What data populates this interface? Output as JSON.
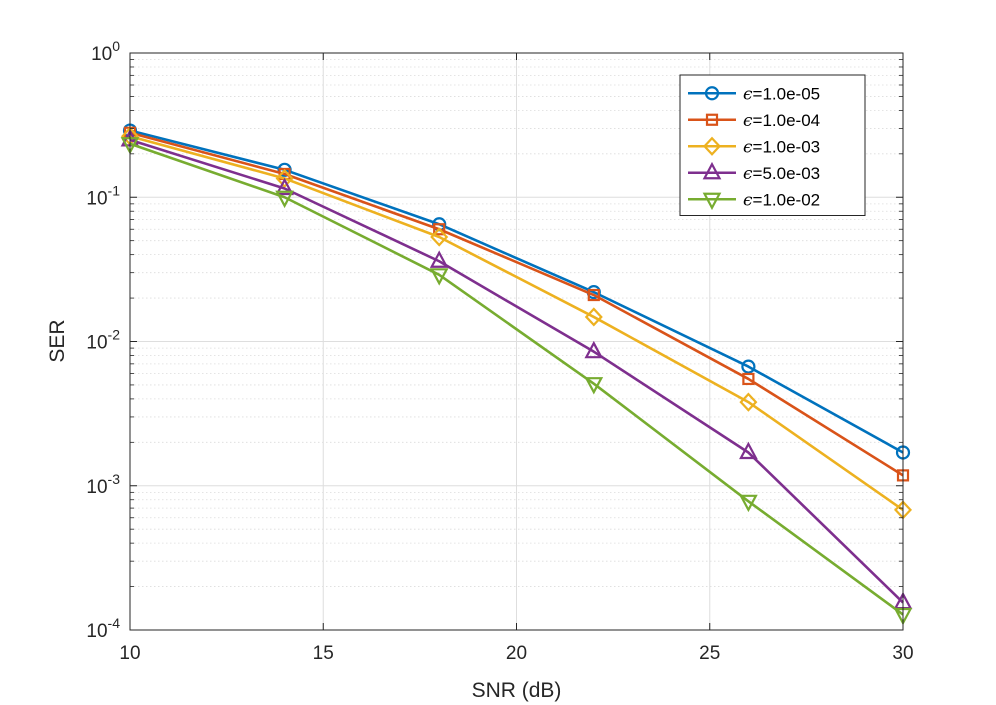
{
  "chart_data": {
    "type": "line",
    "title": "",
    "xlabel": "SNR (dB)",
    "ylabel": "SER",
    "xlim": [
      10,
      30
    ],
    "ylim": [
      0.0001,
      1
    ],
    "yscale": "log",
    "grid": true,
    "minor_grid": true,
    "legend_position": "top-right",
    "x_ticks": [
      {
        "value": 10,
        "label": "10"
      },
      {
        "value": 15,
        "label": "15"
      },
      {
        "value": 20,
        "label": "20"
      },
      {
        "value": 25,
        "label": "25"
      },
      {
        "value": 30,
        "label": "30"
      }
    ],
    "y_ticks": [
      {
        "exp": 0,
        "base": "10",
        "exponent": "0"
      },
      {
        "exp": -1,
        "base": "10",
        "exponent": "-1"
      },
      {
        "exp": -2,
        "base": "10",
        "exponent": "-2"
      },
      {
        "exp": -3,
        "base": "10",
        "exponent": "-3"
      },
      {
        "exp": -4,
        "base": "10",
        "exponent": "-4"
      }
    ],
    "x": [
      10,
      14,
      18,
      22,
      26,
      30
    ],
    "series": [
      {
        "name": "ϵ=1.0e-05",
        "symbol": "ϵ",
        "value_text": "=1.0e-05",
        "color": "#0072BD",
        "marker": "circle",
        "values": [
          0.29,
          0.155,
          0.065,
          0.022,
          0.0067,
          0.0017
        ]
      },
      {
        "name": "ϵ=1.0e-04",
        "symbol": "ϵ",
        "value_text": "=1.0e-04",
        "color": "#D95319",
        "marker": "square",
        "values": [
          0.28,
          0.145,
          0.06,
          0.021,
          0.0055,
          0.00118
        ]
      },
      {
        "name": "ϵ=1.0e-03",
        "symbol": "ϵ",
        "value_text": "=1.0e-03",
        "color": "#EDB120",
        "marker": "diamond",
        "values": [
          0.265,
          0.135,
          0.053,
          0.0148,
          0.0038,
          0.00068
        ]
      },
      {
        "name": "ϵ=5.0e-03",
        "symbol": "ϵ",
        "value_text": "=5.0e-03",
        "color": "#7E2F8E",
        "marker": "triangle-up",
        "values": [
          0.25,
          0.115,
          0.036,
          0.0085,
          0.0017,
          0.000155
        ]
      },
      {
        "name": "ϵ=1.0e-02",
        "symbol": "ϵ",
        "value_text": "=1.0e-02",
        "color": "#77AC30",
        "marker": "triangle-down",
        "values": [
          0.235,
          0.1,
          0.029,
          0.0051,
          0.00078,
          0.000128
        ]
      }
    ]
  }
}
